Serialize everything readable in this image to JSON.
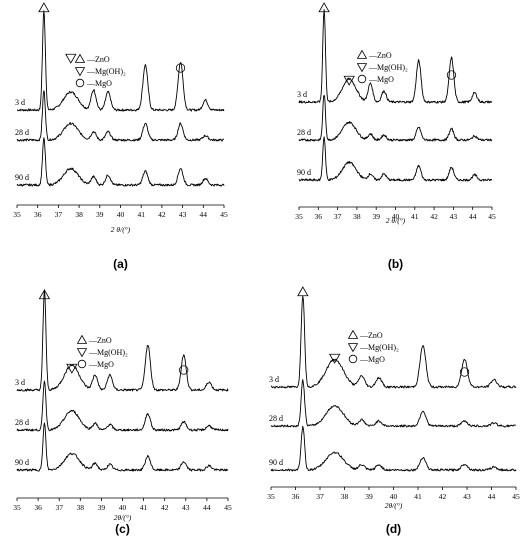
{
  "chart_data": [
    {
      "type": "line",
      "panel_label": "(a)",
      "xlabel": "2 θ/(°)",
      "xlim": [
        35,
        45
      ],
      "x_ticks": [
        "35",
        "36",
        "37",
        "38",
        "39",
        "40",
        "41",
        "42",
        "43",
        "44",
        "45"
      ],
      "legend": [
        {
          "symbol": "triangle-up",
          "label": "—ZnO"
        },
        {
          "symbol": "triangle-down",
          "label": "—Mg(OH)₂"
        },
        {
          "symbol": "circle",
          "label": "—MgO"
        }
      ],
      "series": [
        {
          "name": "3 d",
          "peaks": [
            [
              36.3,
              1.0
            ],
            [
              37.6,
              0.18
            ],
            [
              38.7,
              0.2
            ],
            [
              39.4,
              0.18
            ],
            [
              41.2,
              0.45
            ],
            [
              42.9,
              0.48
            ],
            [
              44.1,
              0.1
            ]
          ]
        },
        {
          "name": "28 d",
          "peaks": [
            [
              36.3,
              0.9
            ],
            [
              37.6,
              0.3
            ],
            [
              38.7,
              0.15
            ],
            [
              39.4,
              0.15
            ],
            [
              41.2,
              0.3
            ],
            [
              42.9,
              0.3
            ],
            [
              44.1,
              0.08
            ]
          ]
        },
        {
          "name": "90 d",
          "peaks": [
            [
              36.3,
              0.85
            ],
            [
              37.6,
              0.3
            ],
            [
              38.7,
              0.15
            ],
            [
              39.4,
              0.18
            ],
            [
              41.2,
              0.25
            ],
            [
              42.9,
              0.3
            ],
            [
              44.1,
              0.12
            ]
          ]
        }
      ],
      "peak_markers": [
        {
          "symbol": "triangle-up",
          "x": 36.3
        },
        {
          "symbol": "triangle-down",
          "x": 37.6
        },
        {
          "symbol": "circle",
          "x": 42.9
        }
      ]
    },
    {
      "type": "line",
      "panel_label": "(b)",
      "xlabel": "2 θ/(°)",
      "xlim": [
        35,
        45
      ],
      "x_ticks": [
        "35",
        "36",
        "37",
        "38",
        "39",
        "40",
        "41",
        "42",
        "43",
        "44",
        "45"
      ],
      "legend": [
        {
          "symbol": "triangle-up",
          "label": "—ZnO"
        },
        {
          "symbol": "triangle-down",
          "label": "—Mg(OH)₂"
        },
        {
          "symbol": "circle",
          "label": "—MgO"
        }
      ],
      "series": [
        {
          "name": "3 d",
          "peaks": [
            [
              36.3,
              1.0
            ],
            [
              37.6,
              0.25
            ],
            [
              38.7,
              0.2
            ],
            [
              39.4,
              0.12
            ],
            [
              41.2,
              0.45
            ],
            [
              42.9,
              0.48
            ],
            [
              44.1,
              0.1
            ]
          ]
        },
        {
          "name": "28 d",
          "peaks": [
            [
              36.3,
              0.9
            ],
            [
              37.6,
              0.35
            ],
            [
              38.7,
              0.12
            ],
            [
              39.4,
              0.1
            ],
            [
              41.2,
              0.25
            ],
            [
              42.9,
              0.22
            ],
            [
              44.1,
              0.08
            ]
          ]
        },
        {
          "name": "90 d",
          "peaks": [
            [
              36.3,
              0.85
            ],
            [
              37.6,
              0.35
            ],
            [
              38.7,
              0.12
            ],
            [
              39.4,
              0.12
            ],
            [
              41.2,
              0.28
            ],
            [
              42.9,
              0.25
            ],
            [
              44.1,
              0.1
            ]
          ]
        }
      ],
      "peak_markers": [
        {
          "symbol": "triangle-up",
          "x": 36.3
        },
        {
          "symbol": "triangle-down",
          "x": 37.6
        },
        {
          "symbol": "circle",
          "x": 42.9
        }
      ]
    },
    {
      "type": "line",
      "panel_label": "(c)",
      "xlabel": "2θ/(°)",
      "xlim": [
        35,
        45
      ],
      "x_ticks": [
        "35",
        "36",
        "37",
        "38",
        "39",
        "40",
        "41",
        "42",
        "43",
        "44",
        "45"
      ],
      "legend": [
        {
          "symbol": "triangle-up",
          "label": "—ZnO"
        },
        {
          "symbol": "triangle-down",
          "label": "—Mg(OH)₂"
        },
        {
          "symbol": "circle",
          "label": "—MgO"
        }
      ],
      "series": [
        {
          "name": "3 d",
          "peaks": [
            [
              36.3,
              1.0
            ],
            [
              37.6,
              0.25
            ],
            [
              38.7,
              0.15
            ],
            [
              39.4,
              0.15
            ],
            [
              41.2,
              0.45
            ],
            [
              42.9,
              0.35
            ],
            [
              44.1,
              0.08
            ]
          ]
        },
        {
          "name": "28 d",
          "peaks": [
            [
              36.3,
              0.9
            ],
            [
              37.6,
              0.35
            ],
            [
              38.7,
              0.12
            ],
            [
              39.4,
              0.1
            ],
            [
              41.2,
              0.3
            ],
            [
              42.9,
              0.15
            ],
            [
              44.1,
              0.08
            ]
          ]
        },
        {
          "name": "90 d",
          "peaks": [
            [
              36.3,
              0.85
            ],
            [
              37.6,
              0.3
            ],
            [
              38.7,
              0.12
            ],
            [
              39.4,
              0.1
            ],
            [
              41.2,
              0.25
            ],
            [
              42.9,
              0.15
            ],
            [
              44.1,
              0.08
            ]
          ]
        }
      ],
      "peak_markers": [
        {
          "symbol": "triangle-up",
          "x": 36.3
        },
        {
          "symbol": "triangle-down",
          "x": 37.6
        },
        {
          "symbol": "circle",
          "x": 42.9
        }
      ]
    },
    {
      "type": "line",
      "panel_label": "(d)",
      "xlabel": "2θ/(°)",
      "xlim": [
        35,
        45
      ],
      "x_ticks": [
        "35",
        "36",
        "37",
        "38",
        "39",
        "40",
        "41",
        "42",
        "43",
        "44",
        "45"
      ],
      "legend": [
        {
          "symbol": "triangle-up",
          "label": "—ZnO"
        },
        {
          "symbol": "triangle-down",
          "label": "—Mg(OH)₂"
        },
        {
          "symbol": "circle",
          "label": "—MgO"
        }
      ],
      "series": [
        {
          "name": "3 d",
          "peaks": [
            [
              36.3,
              1.0
            ],
            [
              37.6,
              0.3
            ],
            [
              38.7,
              0.12
            ],
            [
              39.4,
              0.1
            ],
            [
              41.2,
              0.45
            ],
            [
              42.9,
              0.3
            ],
            [
              44.1,
              0.08
            ]
          ]
        },
        {
          "name": "28 d",
          "peaks": [
            [
              36.3,
              0.9
            ],
            [
              37.6,
              0.4
            ],
            [
              38.7,
              0.12
            ],
            [
              39.4,
              0.1
            ],
            [
              41.2,
              0.3
            ],
            [
              42.9,
              0.1
            ],
            [
              44.1,
              0.06
            ]
          ]
        },
        {
          "name": "90 d",
          "peaks": [
            [
              36.3,
              0.85
            ],
            [
              37.6,
              0.35
            ],
            [
              38.7,
              0.1
            ],
            [
              39.4,
              0.1
            ],
            [
              41.2,
              0.25
            ],
            [
              42.9,
              0.12
            ],
            [
              44.1,
              0.06
            ]
          ]
        }
      ],
      "peak_markers": [
        {
          "symbol": "triangle-up",
          "x": 36.3
        },
        {
          "symbol": "triangle-down",
          "x": 37.6
        },
        {
          "symbol": "circle",
          "x": 42.9
        }
      ]
    }
  ]
}
